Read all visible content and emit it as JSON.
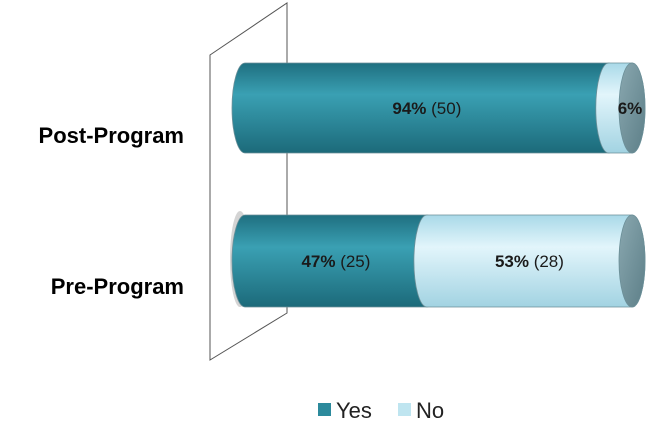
{
  "chart_data": {
    "type": "bar",
    "orientation": "horizontal",
    "style": "3d-cylinder",
    "stacked": true,
    "categories": [
      "Post-Program",
      "Pre-Program"
    ],
    "series": [
      {
        "name": "Yes",
        "color": "#2c8a9c",
        "percent": [
          94,
          47
        ],
        "counts": [
          50,
          25
        ],
        "labels": [
          {
            "pct": "94%",
            "count": "(50)"
          },
          {
            "pct": "47%",
            "count": "(25)"
          }
        ]
      },
      {
        "name": "No",
        "color": "#bfe5f0",
        "percent": [
          6,
          53
        ],
        "counts": [
          null,
          28
        ],
        "labels": [
          {
            "pct": "6%",
            "count": ""
          },
          {
            "pct": "53%",
            "count": "(28)"
          }
        ]
      }
    ],
    "xlim": [
      0,
      100
    ],
    "legend": {
      "position": "bottom",
      "items": [
        "Yes",
        "No"
      ]
    },
    "grid": false
  }
}
